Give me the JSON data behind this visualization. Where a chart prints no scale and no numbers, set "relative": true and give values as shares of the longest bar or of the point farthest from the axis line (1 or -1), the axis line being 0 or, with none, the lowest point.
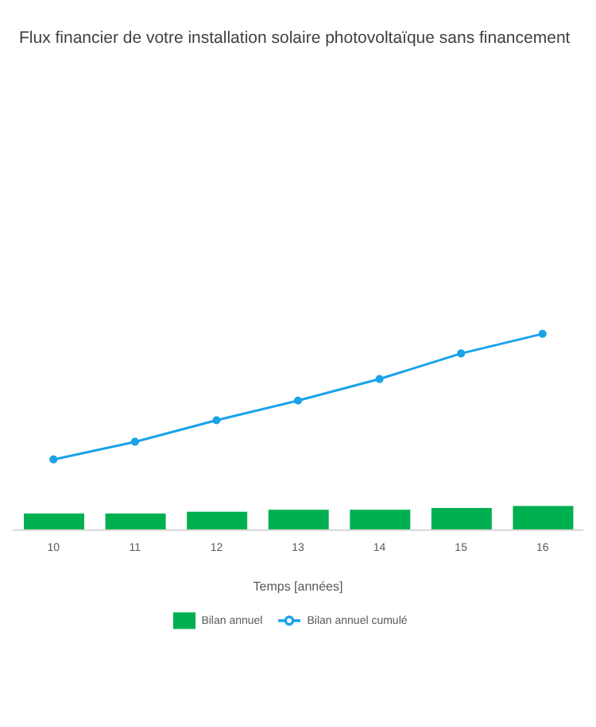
{
  "chart_data": {
    "type": "bar",
    "title": "Flux financier de votre installation solaire photovoltaïque sans financement",
    "xlabel": "Temps [années]",
    "categories": [
      "10",
      "11",
      "12",
      "13",
      "14",
      "15",
      "16"
    ],
    "relative": true,
    "legend": "bottom",
    "series": [
      {
        "name": "Bilan annuel",
        "color": "#00b050",
        "values": [
          0.085,
          0.085,
          0.094,
          0.104,
          0.104,
          0.113,
          0.123
        ]
      },
      {
        "name": "Bilan annuel cumulé",
        "type": "line",
        "color": "#1aa3e8",
        "marker": "circle",
        "values": [
          0.36,
          0.45,
          0.56,
          0.66,
          0.77,
          0.9,
          1
        ]
      }
    ]
  }
}
